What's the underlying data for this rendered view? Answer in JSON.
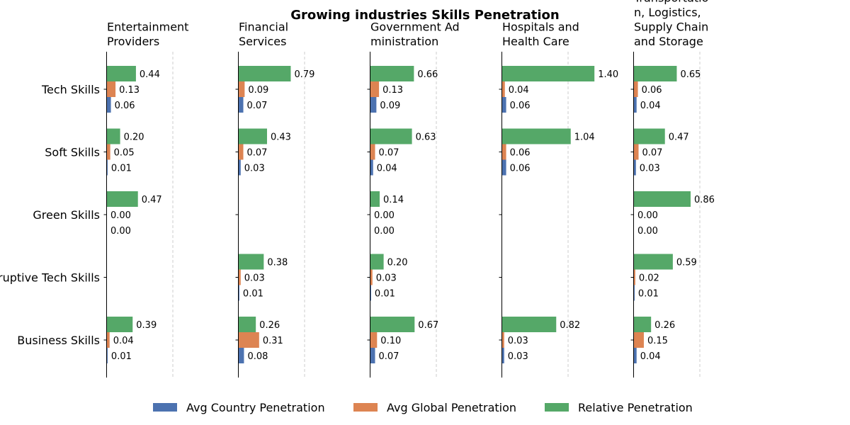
{
  "chart_data": {
    "type": "bar",
    "orientation": "horizontal",
    "title": "Growing industries Skills Penetration",
    "categories": [
      "Tech Skills",
      "Soft Skills",
      "Green Skills",
      "Disruptive Tech Skills",
      "Business Skills"
    ],
    "series_names": [
      "Avg Country Penetration",
      "Avg Global Penetration",
      "Relative Penetration"
    ],
    "colors": [
      "#4c72b0",
      "#dd8452",
      "#55a868"
    ],
    "xlim": [
      0,
      1.5
    ],
    "grid": "x, dashed",
    "legend_position": "bottom-center",
    "panels": [
      {
        "title_lines": [
          "Entertainment",
          "Providers"
        ],
        "values": [
          [
            0.06,
            0.13,
            0.44
          ],
          [
            0.01,
            0.05,
            0.2
          ],
          [
            0.0,
            0.0,
            0.47
          ],
          [
            null,
            null,
            null
          ],
          [
            0.01,
            0.04,
            0.39
          ]
        ]
      },
      {
        "title_lines": [
          "Financial",
          "Services"
        ],
        "values": [
          [
            0.07,
            0.09,
            0.79
          ],
          [
            0.03,
            0.07,
            0.43
          ],
          [
            null,
            null,
            null
          ],
          [
            0.01,
            0.03,
            0.38
          ],
          [
            0.08,
            0.31,
            0.26
          ]
        ]
      },
      {
        "title_lines": [
          "Government Ad",
          "ministration"
        ],
        "values": [
          [
            0.09,
            0.13,
            0.66
          ],
          [
            0.04,
            0.07,
            0.63
          ],
          [
            0.0,
            0.0,
            0.14
          ],
          [
            0.01,
            0.03,
            0.2
          ],
          [
            0.07,
            0.1,
            0.67
          ]
        ]
      },
      {
        "title_lines": [
          "Hospitals and",
          "Health Care"
        ],
        "values": [
          [
            0.06,
            0.04,
            1.4
          ],
          [
            0.06,
            0.06,
            1.04
          ],
          [
            null,
            null,
            null
          ],
          [
            null,
            null,
            null
          ],
          [
            0.03,
            0.03,
            0.82
          ]
        ]
      },
      {
        "title_lines": [
          "Transportatio",
          "n, Logistics,",
          "Supply Chain",
          "and Storage"
        ],
        "values": [
          [
            0.04,
            0.06,
            0.65
          ],
          [
            0.03,
            0.07,
            0.47
          ],
          [
            0.0,
            0.0,
            0.86
          ],
          [
            0.01,
            0.02,
            0.59
          ],
          [
            0.04,
            0.15,
            0.26
          ]
        ]
      }
    ]
  }
}
